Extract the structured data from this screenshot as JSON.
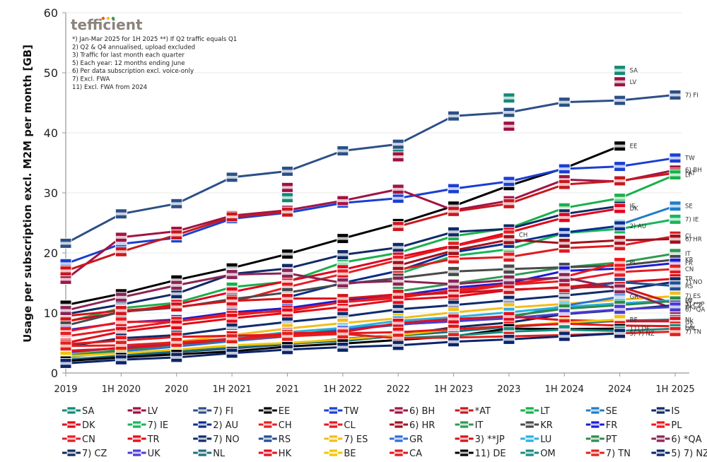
{
  "logo": {
    "text": "tefficient",
    "dot_colors": [
      "#e8562a",
      "#f2c417",
      "#2ca24a"
    ]
  },
  "notes": [
    "*) Jan-Mar 2025 for 1H 2025 **) If Q2 traffic equals Q1",
    "2) Q2 & Q4 annualised, upload excluded",
    "3) Traffic for last month each quarter",
    "5) Each year: 12 months ending June",
    "6) Per data subscription excl. voice-only",
    "7) Excl. FWA",
    "11) Excl. FWA from 2024"
  ],
  "chart_data": {
    "type": "line",
    "title": "",
    "xlabel": "",
    "ylabel": "Usage per subscription excl. M2M per month [GB]",
    "ylim": [
      0,
      60
    ],
    "yticks": [
      0,
      10,
      20,
      30,
      40,
      50,
      60
    ],
    "grid": true,
    "legend_position": "bottom",
    "categories": [
      "2019",
      "1H 2020",
      "2020",
      "1H 2021",
      "2021",
      "1H 2022",
      "2022",
      "1H 2023",
      "2023",
      "1H 2024",
      "2024",
      "1H 2025"
    ],
    "series": [
      {
        "name": "SA",
        "label": "SA",
        "color": "#138a74",
        "values": [
          null,
          null,
          null,
          null,
          29.2,
          null,
          36.5,
          null,
          45.8,
          null,
          50.4,
          null
        ]
      },
      {
        "name": "LV",
        "label": "LV",
        "color": "#9e1140",
        "values": [
          null,
          null,
          null,
          null,
          30.9,
          null,
          36.0,
          null,
          41.1,
          null,
          48.5,
          null
        ]
      },
      {
        "name": "7) FI",
        "label": "7) FI",
        "color": "#2c4f86",
        "values": [
          21.6,
          26.5,
          28.2,
          32.6,
          33.6,
          37.0,
          38.1,
          42.8,
          43.4,
          45.1,
          45.4,
          46.3
        ]
      },
      {
        "name": "EE",
        "label": "EE",
        "color": "#000000",
        "values": [
          11.3,
          13.2,
          15.5,
          17.5,
          19.8,
          22.4,
          24.9,
          27.8,
          31.2,
          34.1,
          37.8,
          null
        ]
      },
      {
        "name": "TW",
        "label": "TW",
        "color": "#1a3fd1",
        "values": [
          18.2,
          21.5,
          22.5,
          25.7,
          26.7,
          28.3,
          29.1,
          30.7,
          31.9,
          34.0,
          34.4,
          35.8
        ]
      },
      {
        "name": "6) BH",
        "label": "6) BH",
        "color": "#a01545",
        "values": [
          15.6,
          22.6,
          23.6,
          26.2,
          27.1,
          28.7,
          30.6,
          27.1,
          28.7,
          32.2,
          31.9,
          33.8
        ]
      },
      {
        "name": "*AT",
        "label": "*AT",
        "color": "#c8181e",
        "values": [
          17.0,
          20.2,
          23.0,
          26.0,
          26.8,
          null,
          24.4,
          26.9,
          28.2,
          31.4,
          32.0,
          33.3
        ]
      },
      {
        "name": "LT",
        "label": "LT",
        "color": "#19b04b",
        "values": [
          8.5,
          10.8,
          11.7,
          14.3,
          15.2,
          18.4,
          20.0,
          22.8,
          24.1,
          27.5,
          29.1,
          33.0
        ]
      },
      {
        "name": "SE",
        "label": "SE",
        "color": "#1e7dc9",
        "values": [
          null,
          null,
          null,
          null,
          null,
          null,
          null,
          null,
          null,
          null,
          24.7,
          27.8
        ]
      },
      {
        "name": "IS",
        "label": "IS",
        "color": "#0f2a66",
        "values": [
          9.8,
          11.4,
          13.2,
          16.5,
          17.4,
          19.7,
          20.9,
          23.5,
          24.0,
          26.5,
          27.8,
          null
        ]
      },
      {
        "name": "DK",
        "label": "DK",
        "color": "#e3001b",
        "values": [
          8.6,
          10.1,
          11.4,
          13.5,
          15.3,
          17.2,
          19.3,
          21.2,
          23.4,
          25.9,
          27.4,
          null
        ]
      },
      {
        "name": "7) IE",
        "label": "7) IE",
        "color": "#16b65a",
        "values": [
          null,
          null,
          null,
          null,
          null,
          null,
          16.5,
          19.5,
          20.6,
          23.3,
          24.0,
          25.6
        ]
      },
      {
        "name": "2) AU",
        "label": "2) AU",
        "color": "#0a2d8f",
        "values": [
          null,
          null,
          null,
          null,
          12.6,
          15.0,
          17.0,
          20.1,
          21.6,
          23.4,
          24.5,
          null
        ]
      },
      {
        "name": "CH",
        "label": "CH",
        "color": "#e51d21",
        "values": [
          null,
          null,
          null,
          11.8,
          14.3,
          16.5,
          18.8,
          21.1,
          23.0,
          null,
          null,
          null
        ]
      },
      {
        "name": "CL",
        "label": "CL",
        "color": "#e01a1f",
        "values": [
          null,
          null,
          null,
          null,
          null,
          null,
          17.2,
          19.0,
          19.3,
          20.8,
          21.2,
          22.8
        ]
      },
      {
        "name": "6) HR",
        "label": "6) HR",
        "color": "#a2101c",
        "values": [
          null,
          null,
          null,
          null,
          null,
          null,
          17.9,
          20.4,
          22.2,
          21.6,
          22.1,
          22.3
        ]
      },
      {
        "name": "IT",
        "label": "IT",
        "color": "#2e9a52",
        "values": [
          null,
          null,
          null,
          null,
          null,
          null,
          13.6,
          14.9,
          16.2,
          17.6,
          18.4,
          19.9
        ]
      },
      {
        "name": "KR",
        "label": "KR",
        "color": "#4a4a4a",
        "values": [
          7.9,
          10.2,
          10.9,
          12.3,
          13.4,
          14.8,
          15.8,
          16.9,
          17.3,
          17.6,
          17.9,
          18.9
        ]
      },
      {
        "name": "FR",
        "label": "FR",
        "color": "#1b1bd6",
        "values": [
          7.1,
          8.4,
          8.9,
          10.1,
          10.8,
          12.1,
          12.9,
          14.2,
          15.0,
          17.0,
          17.4,
          18.3
        ]
      },
      {
        "name": "PL",
        "label": "PL",
        "color": "#f2141a",
        "values": [
          6.9,
          8.5,
          8.6,
          9.9,
          10.3,
          11.8,
          12.5,
          13.8,
          14.8,
          16.0,
          18.4,
          null
        ]
      },
      {
        "name": "CN",
        "label": "CN",
        "color": "#e51c23",
        "values": [
          6.1,
          7.4,
          8.6,
          9.6,
          10.5,
          11.8,
          12.8,
          13.4,
          14.7,
          15.3,
          16.8,
          17.3
        ]
      },
      {
        "name": "TR",
        "label": "TR",
        "color": "#e30a17",
        "values": [
          5.0,
          6.9,
          8.0,
          9.1,
          10.0,
          11.0,
          12.2,
          12.7,
          13.8,
          14.3,
          15.1,
          15.7
        ]
      },
      {
        "name": "7) NO",
        "label": "7) NO",
        "color": "#0e2b6a",
        "values": [
          4.4,
          5.8,
          6.3,
          7.5,
          8.5,
          9.4,
          10.6,
          11.3,
          12.1,
          12.9,
          13.8,
          15.2
        ]
      },
      {
        "name": "RS",
        "label": "RS",
        "color": "#1f4f94",
        "values": [
          null,
          null,
          null,
          null,
          null,
          null,
          null,
          null,
          null,
          13.9,
          15.1,
          14.5
        ]
      },
      {
        "name": "7) ES",
        "label": "7) ES",
        "color": "#f2bd1a",
        "values": [
          3.1,
          4.3,
          5.2,
          6.3,
          7.4,
          8.3,
          9.1,
          10.1,
          10.9,
          11.5,
          12.2,
          12.8
        ]
      },
      {
        "name": "GR",
        "label": "GR",
        "color": "#2d70d6",
        "values": [
          2.6,
          3.6,
          4.4,
          5.3,
          6.1,
          7.4,
          8.1,
          8.6,
          9.2,
          11.2,
          12.7,
          null
        ]
      },
      {
        "name": "3) **JP",
        "label": "3) **JP",
        "color": "#d4141a",
        "values": [
          9.5,
          10.4,
          11.0,
          12.0,
          12.4,
          12.4,
          13.1,
          13.3,
          13.9,
          14.2,
          14.4,
          11.5
        ]
      },
      {
        "name": "LU",
        "label": "LU",
        "color": "#29b0e0",
        "values": [
          3.6,
          4.1,
          4.9,
          5.8,
          6.8,
          7.5,
          8.7,
          9.3,
          10.1,
          11.0,
          11.6,
          12.1
        ]
      },
      {
        "name": "PT",
        "label": "PT",
        "color": "#2a8c4a",
        "values": [
          2.9,
          3.8,
          4.8,
          5.5,
          6.3,
          7.2,
          8.0,
          8.9,
          9.5,
          10.7,
          11.3,
          12.0
        ]
      },
      {
        "name": "6) *QA",
        "label": "6) *QA",
        "color": "#8b2456",
        "values": [
          10.4,
          12.6,
          14.6,
          16.4,
          16.6,
          15.0,
          15.3,
          14.8,
          15.5,
          15.9,
          14.0,
          10.6
        ]
      },
      {
        "name": "7) CZ",
        "label": "7) CZ",
        "color": "#0f2a5c",
        "values": [
          2.1,
          2.8,
          3.5,
          4.1,
          4.8,
          5.7,
          6.3,
          7.6,
          8.4,
          9.8,
          10.5,
          11.3
        ]
      },
      {
        "name": "UK",
        "label": "UK",
        "color": "#4c3bd1",
        "values": [
          3.4,
          4.2,
          5.0,
          5.6,
          6.2,
          7.1,
          8.1,
          8.6,
          9.1,
          9.9,
          10.6,
          11.0
        ]
      },
      {
        "name": "NL",
        "label": "NL",
        "color": "#1d6f7c",
        "values": [
          2.2,
          2.9,
          3.6,
          4.2,
          4.9,
          5.3,
          6.2,
          6.9,
          7.7,
          8.2,
          8.7,
          8.9
        ]
      },
      {
        "name": "HK",
        "label": "HK",
        "color": "#e10f1f",
        "values": [
          3.7,
          4.1,
          4.8,
          5.6,
          6.6,
          6.8,
          8.3,
          9.0,
          9.4,
          8.8,
          8.6,
          8.6
        ]
      },
      {
        "name": "BE",
        "label": "BE",
        "color": "#f2c400",
        "values": [
          2.8,
          3.3,
          3.9,
          4.6,
          5.0,
          5.6,
          6.3,
          7.3,
          7.8,
          8.4,
          8.9,
          null
        ]
      },
      {
        "name": "CA",
        "label": "CA",
        "color": "#e4151b",
        "values": [
          4.8,
          5.4,
          6.0,
          6.2,
          6.4,
          6.6,
          6.8,
          7.3,
          7.8,
          8.2,
          7.9,
          7.8
        ]
      },
      {
        "name": "11) DE",
        "label": "11) DE",
        "color": "#000000",
        "values": [
          2.0,
          2.6,
          3.1,
          3.6,
          4.4,
          4.9,
          5.5,
          6.1,
          7.4,
          7.3,
          7.4,
          null
        ]
      },
      {
        "name": "OM",
        "label": "OM",
        "color": "#1a8a80",
        "values": [
          null,
          null,
          null,
          null,
          null,
          null,
          5.8,
          6.2,
          6.9,
          7.2,
          7.0,
          7.4
        ]
      },
      {
        "name": "7) TN",
        "label": "7) TN",
        "color": "#e3201b",
        "values": [
          4.5,
          4.6,
          5.1,
          5.7,
          6.1,
          6.5,
          5.8,
          5.9,
          6.1,
          6.3,
          6.6,
          6.9
        ]
      },
      {
        "name": "5) 7) NZ",
        "label": "5) 7) NZ",
        "color": "#0c246a",
        "values": [
          1.6,
          2.2,
          2.6,
          3.3,
          3.9,
          4.3,
          4.6,
          5.2,
          5.6,
          6.1,
          6.6,
          null
        ]
      }
    ]
  }
}
